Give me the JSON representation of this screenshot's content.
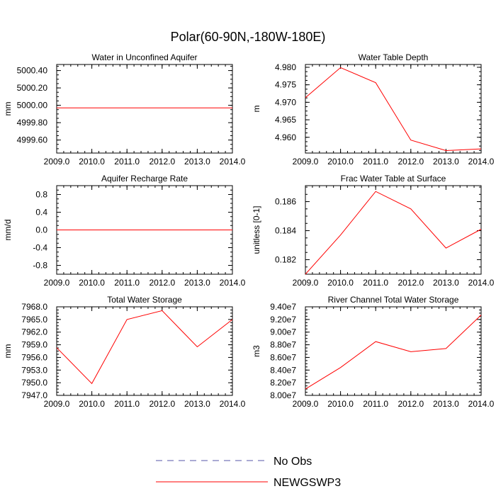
{
  "figure_title": "Polar(60-90N,-180W-180E)",
  "legend": [
    {
      "label": "No Obs",
      "style": "dashed",
      "color": "#5555aa"
    },
    {
      "label": "NEWGSWP3",
      "style": "solid",
      "color": "#ff0000"
    }
  ],
  "chart_data": [
    {
      "type": "line",
      "title": "Water in Unconfined Aquifer",
      "xlabel": "",
      "ylabel": "mm",
      "xlim": [
        2009,
        2014
      ],
      "ylim": [
        4999.45,
        5000.47
      ],
      "x_ticks": [
        2009,
        2010,
        2011,
        2012,
        2013,
        2014
      ],
      "x_tick_labels": [
        "2009.0",
        "2010.0",
        "2011.0",
        "2012.0",
        "2013.0",
        "2014.0"
      ],
      "y_ticks": [
        4999.6,
        4999.8,
        5000.0,
        5000.2,
        5000.4
      ],
      "y_tick_labels": [
        "4999.60",
        "4999.80",
        "5000.00",
        "5000.20",
        "5000.40"
      ],
      "series": [
        {
          "name": "NEWGSWP3",
          "x": [
            2009,
            2010,
            2011,
            2012,
            2013,
            2014
          ],
          "values": [
            4999.97,
            4999.97,
            4999.97,
            4999.97,
            4999.97,
            4999.97
          ]
        }
      ]
    },
    {
      "type": "line",
      "title": "Water Table Depth",
      "xlabel": "",
      "ylabel": "m",
      "xlim": [
        2009,
        2014
      ],
      "ylim": [
        4.9555,
        4.9808
      ],
      "x_ticks": [
        2009,
        2010,
        2011,
        2012,
        2013,
        2014
      ],
      "x_tick_labels": [
        "2009.0",
        "2010.0",
        "2011.0",
        "2012.0",
        "2013.0",
        "2014.0"
      ],
      "y_ticks": [
        4.96,
        4.965,
        4.97,
        4.975,
        4.98
      ],
      "y_tick_labels": [
        "4.960",
        "4.965",
        "4.970",
        "4.975",
        "4.980"
      ],
      "series": [
        {
          "name": "NEWGSWP3",
          "x": [
            2009,
            2010,
            2011,
            2012,
            2013,
            2014
          ],
          "values": [
            4.9713,
            4.9799,
            4.9756,
            4.9592,
            4.9562,
            4.9567
          ]
        }
      ]
    },
    {
      "type": "line",
      "title": "Aquifer Recharge Rate",
      "xlabel": "",
      "ylabel": "mm/d",
      "xlim": [
        2009,
        2014
      ],
      "ylim": [
        -1.0,
        1.0
      ],
      "x_ticks": [
        2009,
        2010,
        2011,
        2012,
        2013,
        2014
      ],
      "x_tick_labels": [
        "2009.0",
        "2010.0",
        "2011.0",
        "2012.0",
        "2013.0",
        "2014.0"
      ],
      "y_ticks": [
        -0.8,
        -0.4,
        0.0,
        0.4,
        0.8
      ],
      "y_tick_labels": [
        "-0.8",
        "-0.4",
        "0.0",
        "0.4",
        "0.8"
      ],
      "series": [
        {
          "name": "NEWGSWP3",
          "x": [
            2009,
            2010,
            2011,
            2012,
            2013,
            2014
          ],
          "values": [
            0,
            0,
            0,
            0,
            0,
            0
          ]
        }
      ]
    },
    {
      "type": "line",
      "title": "Frac Water Table at Surface",
      "xlabel": "",
      "ylabel": "unitless [0-1]",
      "xlim": [
        2009,
        2014
      ],
      "ylim": [
        0.181,
        0.1871
      ],
      "x_ticks": [
        2009,
        2010,
        2011,
        2012,
        2013,
        2014
      ],
      "x_tick_labels": [
        "2009.0",
        "2010.0",
        "2011.0",
        "2012.0",
        "2013.0",
        "2014.0"
      ],
      "y_ticks": [
        0.182,
        0.184,
        0.186
      ],
      "y_tick_labels": [
        "0.182",
        "0.184",
        "0.186"
      ],
      "series": [
        {
          "name": "NEWGSWP3",
          "x": [
            2009,
            2010,
            2011,
            2012,
            2013,
            2014
          ],
          "values": [
            0.181,
            0.1837,
            0.1867,
            0.1855,
            0.1828,
            0.1841
          ]
        }
      ]
    },
    {
      "type": "line",
      "title": "Total Water Storage",
      "xlabel": "",
      "ylabel": "mm",
      "xlim": [
        2009,
        2014
      ],
      "ylim": [
        7947.0,
        7968.0
      ],
      "x_ticks": [
        2009,
        2010,
        2011,
        2012,
        2013,
        2014
      ],
      "x_tick_labels": [
        "2009.0",
        "2010.0",
        "2011.0",
        "2012.0",
        "2013.0",
        "2014.0"
      ],
      "y_ticks": [
        7947,
        7950,
        7953,
        7956,
        7959,
        7962,
        7965,
        7968
      ],
      "y_tick_labels": [
        "7947.0",
        "7950.0",
        "7953.0",
        "7956.0",
        "7959.0",
        "7962.0",
        "7965.0",
        "7968.0"
      ],
      "series": [
        {
          "name": "NEWGSWP3",
          "x": [
            2009,
            2010,
            2011,
            2012,
            2013,
            2014
          ],
          "values": [
            7958.3,
            7949.8,
            7965.0,
            7967.1,
            7958.5,
            7965.0
          ]
        }
      ]
    },
    {
      "type": "line",
      "title": "River Channel Total Water Storage",
      "xlabel": "",
      "ylabel": "m3",
      "xlim": [
        2009,
        2014
      ],
      "ylim": [
        80000000,
        94000000
      ],
      "x_ticks": [
        2009,
        2010,
        2011,
        2012,
        2013,
        2014
      ],
      "x_tick_labels": [
        "2009.0",
        "2010.0",
        "2011.0",
        "2012.0",
        "2013.0",
        "2014.0"
      ],
      "y_ticks": [
        80000000,
        82000000,
        84000000,
        86000000,
        88000000,
        90000000,
        92000000,
        94000000
      ],
      "y_tick_labels": [
        "8.00e7",
        "8.20e7",
        "8.40e7",
        "8.60e7",
        "8.80e7",
        "9.00e7",
        "9.20e7",
        "9.40e7"
      ],
      "series": [
        {
          "name": "NEWGSWP3",
          "x": [
            2009,
            2010,
            2011,
            2012,
            2013,
            2014
          ],
          "values": [
            81000000,
            84400000,
            88500000,
            86900000,
            87400000,
            92700000
          ]
        }
      ]
    }
  ]
}
